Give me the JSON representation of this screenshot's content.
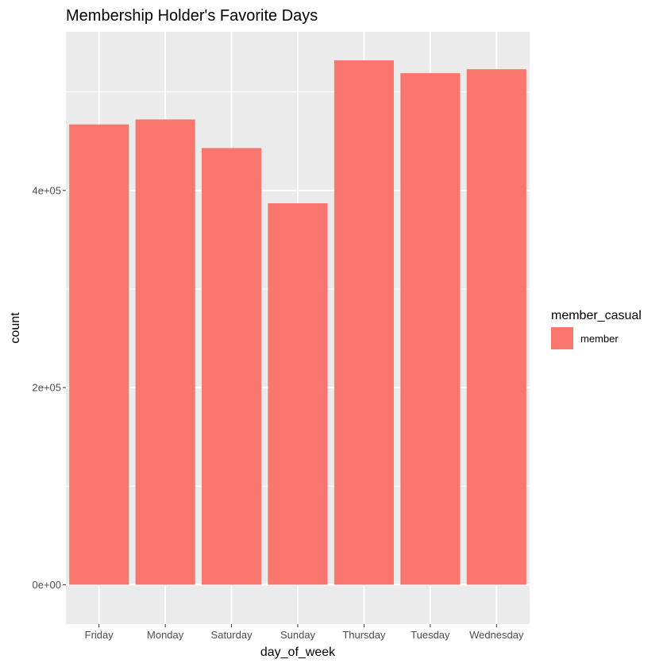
{
  "chart_data": {
    "type": "bar",
    "title": "Membership Holder's Favorite Days",
    "xlabel": "day_of_week",
    "ylabel": "count",
    "categories": [
      "Friday",
      "Monday",
      "Saturday",
      "Sunday",
      "Thursday",
      "Tuesday",
      "Wednesday"
    ],
    "series": [
      {
        "name": "member",
        "values": [
          467000,
          472000,
          443000,
          387000,
          532000,
          519000,
          523000
        ],
        "color": "#F8766D"
      }
    ],
    "ylim": [
      -40000,
      561000
    ],
    "y_ticks": [
      {
        "value": 0,
        "label": "0e+00"
      },
      {
        "value": 200000,
        "label": "2e+05"
      },
      {
        "value": 400000,
        "label": "4e+05"
      }
    ],
    "y_minor_ticks": [
      100000,
      300000,
      500000
    ],
    "grid": true,
    "panel_background": "#EBEBEB",
    "grid_color": "#FFFFFF",
    "legend": {
      "title": "member_casual",
      "position": "right",
      "entries": [
        {
          "label": "member",
          "color": "#F8766D"
        }
      ]
    }
  }
}
